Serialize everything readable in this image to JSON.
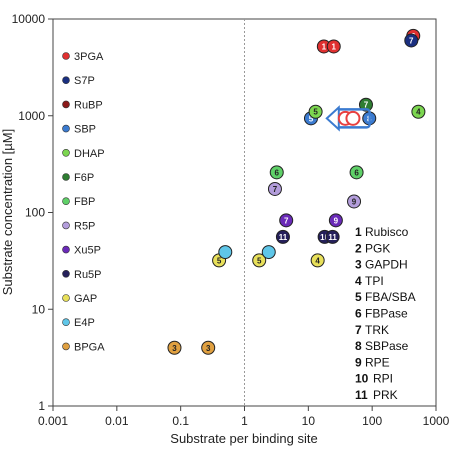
{
  "chart_data": {
    "type": "scatter",
    "xlabel": "Substrate per binding site",
    "ylabel": "Substrate concentration [µM]",
    "x_scale": "log",
    "y_scale": "log",
    "xlim": [
      0.001,
      1000
    ],
    "ylim": [
      1,
      10000
    ],
    "x_ticks": [
      "0.001",
      "0.01",
      "0.1",
      "1",
      "10",
      "100",
      "1000"
    ],
    "y_ticks": [
      "1",
      "10",
      "100",
      "1000",
      "10000"
    ],
    "reference_line_x": 1,
    "series": [
      {
        "name": "3PGA",
        "color": "#e03030",
        "points": [
          [
            440,
            6700,
            "2"
          ],
          [
            17.5,
            5200,
            "1"
          ],
          [
            25,
            5200,
            "1"
          ]
        ]
      },
      {
        "name": "S7P",
        "color": "#1a2f80",
        "points": [
          [
            410,
            6000,
            "7"
          ]
        ]
      },
      {
        "name": "RuBP",
        "color": "#8b1a1a",
        "points": []
      },
      {
        "name": "SBP",
        "color": "#3b7bd0",
        "points": [
          [
            11,
            940,
            "5"
          ],
          [
            90,
            940,
            "8"
          ]
        ]
      },
      {
        "name": "DHAP",
        "color": "#7cd650",
        "points": [
          [
            13,
            1100,
            "5"
          ],
          [
            530,
            1100,
            "4"
          ]
        ]
      },
      {
        "name": "F6P",
        "color": "#2e7d32",
        "points": [
          [
            80,
            1300,
            "7"
          ]
        ]
      },
      {
        "name": "FBP",
        "color": "#5fd068",
        "points": [
          [
            3.2,
            260,
            "6"
          ],
          [
            57,
            260,
            "6"
          ]
        ]
      },
      {
        "name": "R5P",
        "color": "#b39ddb",
        "points": [
          [
            3.0,
            175,
            "7"
          ],
          [
            52,
            130,
            "9"
          ]
        ]
      },
      {
        "name": "Xu5P",
        "color": "#6a2ab8",
        "points": [
          [
            4.5,
            83,
            "7"
          ],
          [
            27,
            83,
            "9"
          ]
        ]
      },
      {
        "name": "Ru5P",
        "color": "#25205a",
        "points": [
          [
            4,
            56,
            "11"
          ],
          [
            18,
            56,
            "10"
          ],
          [
            24,
            56,
            "11"
          ]
        ]
      },
      {
        "name": "GAP",
        "color": "#e8e05a",
        "points": [
          [
            0.4,
            32,
            "5"
          ],
          [
            1.7,
            32,
            "5"
          ],
          [
            14,
            32,
            "4"
          ]
        ]
      },
      {
        "name": "E4P",
        "color": "#5fc6e8",
        "points": [
          [
            0.5,
            39,
            ""
          ],
          [
            2.4,
            39,
            ""
          ]
        ]
      },
      {
        "name": "BPGA",
        "color": "#e0a040",
        "points": [
          [
            0.08,
            4,
            "3"
          ],
          [
            0.27,
            4,
            "3"
          ]
        ]
      }
    ],
    "annotation_arrow": {
      "from": [
        85,
        940
      ],
      "to": [
        30,
        940
      ],
      "color": "#3b7bd0",
      "highlight": "#e84040"
    },
    "enzyme_key": [
      {
        "num": "1",
        "name": "Rubisco"
      },
      {
        "num": "2",
        "name": "PGK"
      },
      {
        "num": "3",
        "name": "GAPDH"
      },
      {
        "num": "4",
        "name": "TPI"
      },
      {
        "num": "5",
        "name": "FBA/SBA"
      },
      {
        "num": "6",
        "name": "FBPase"
      },
      {
        "num": "7",
        "name": "TRK"
      },
      {
        "num": "8",
        "name": "SBPase"
      },
      {
        "num": "9",
        "name": "RPE"
      },
      {
        "num": "10",
        "name": "RPI"
      },
      {
        "num": "11",
        "name": "PRK"
      }
    ]
  }
}
